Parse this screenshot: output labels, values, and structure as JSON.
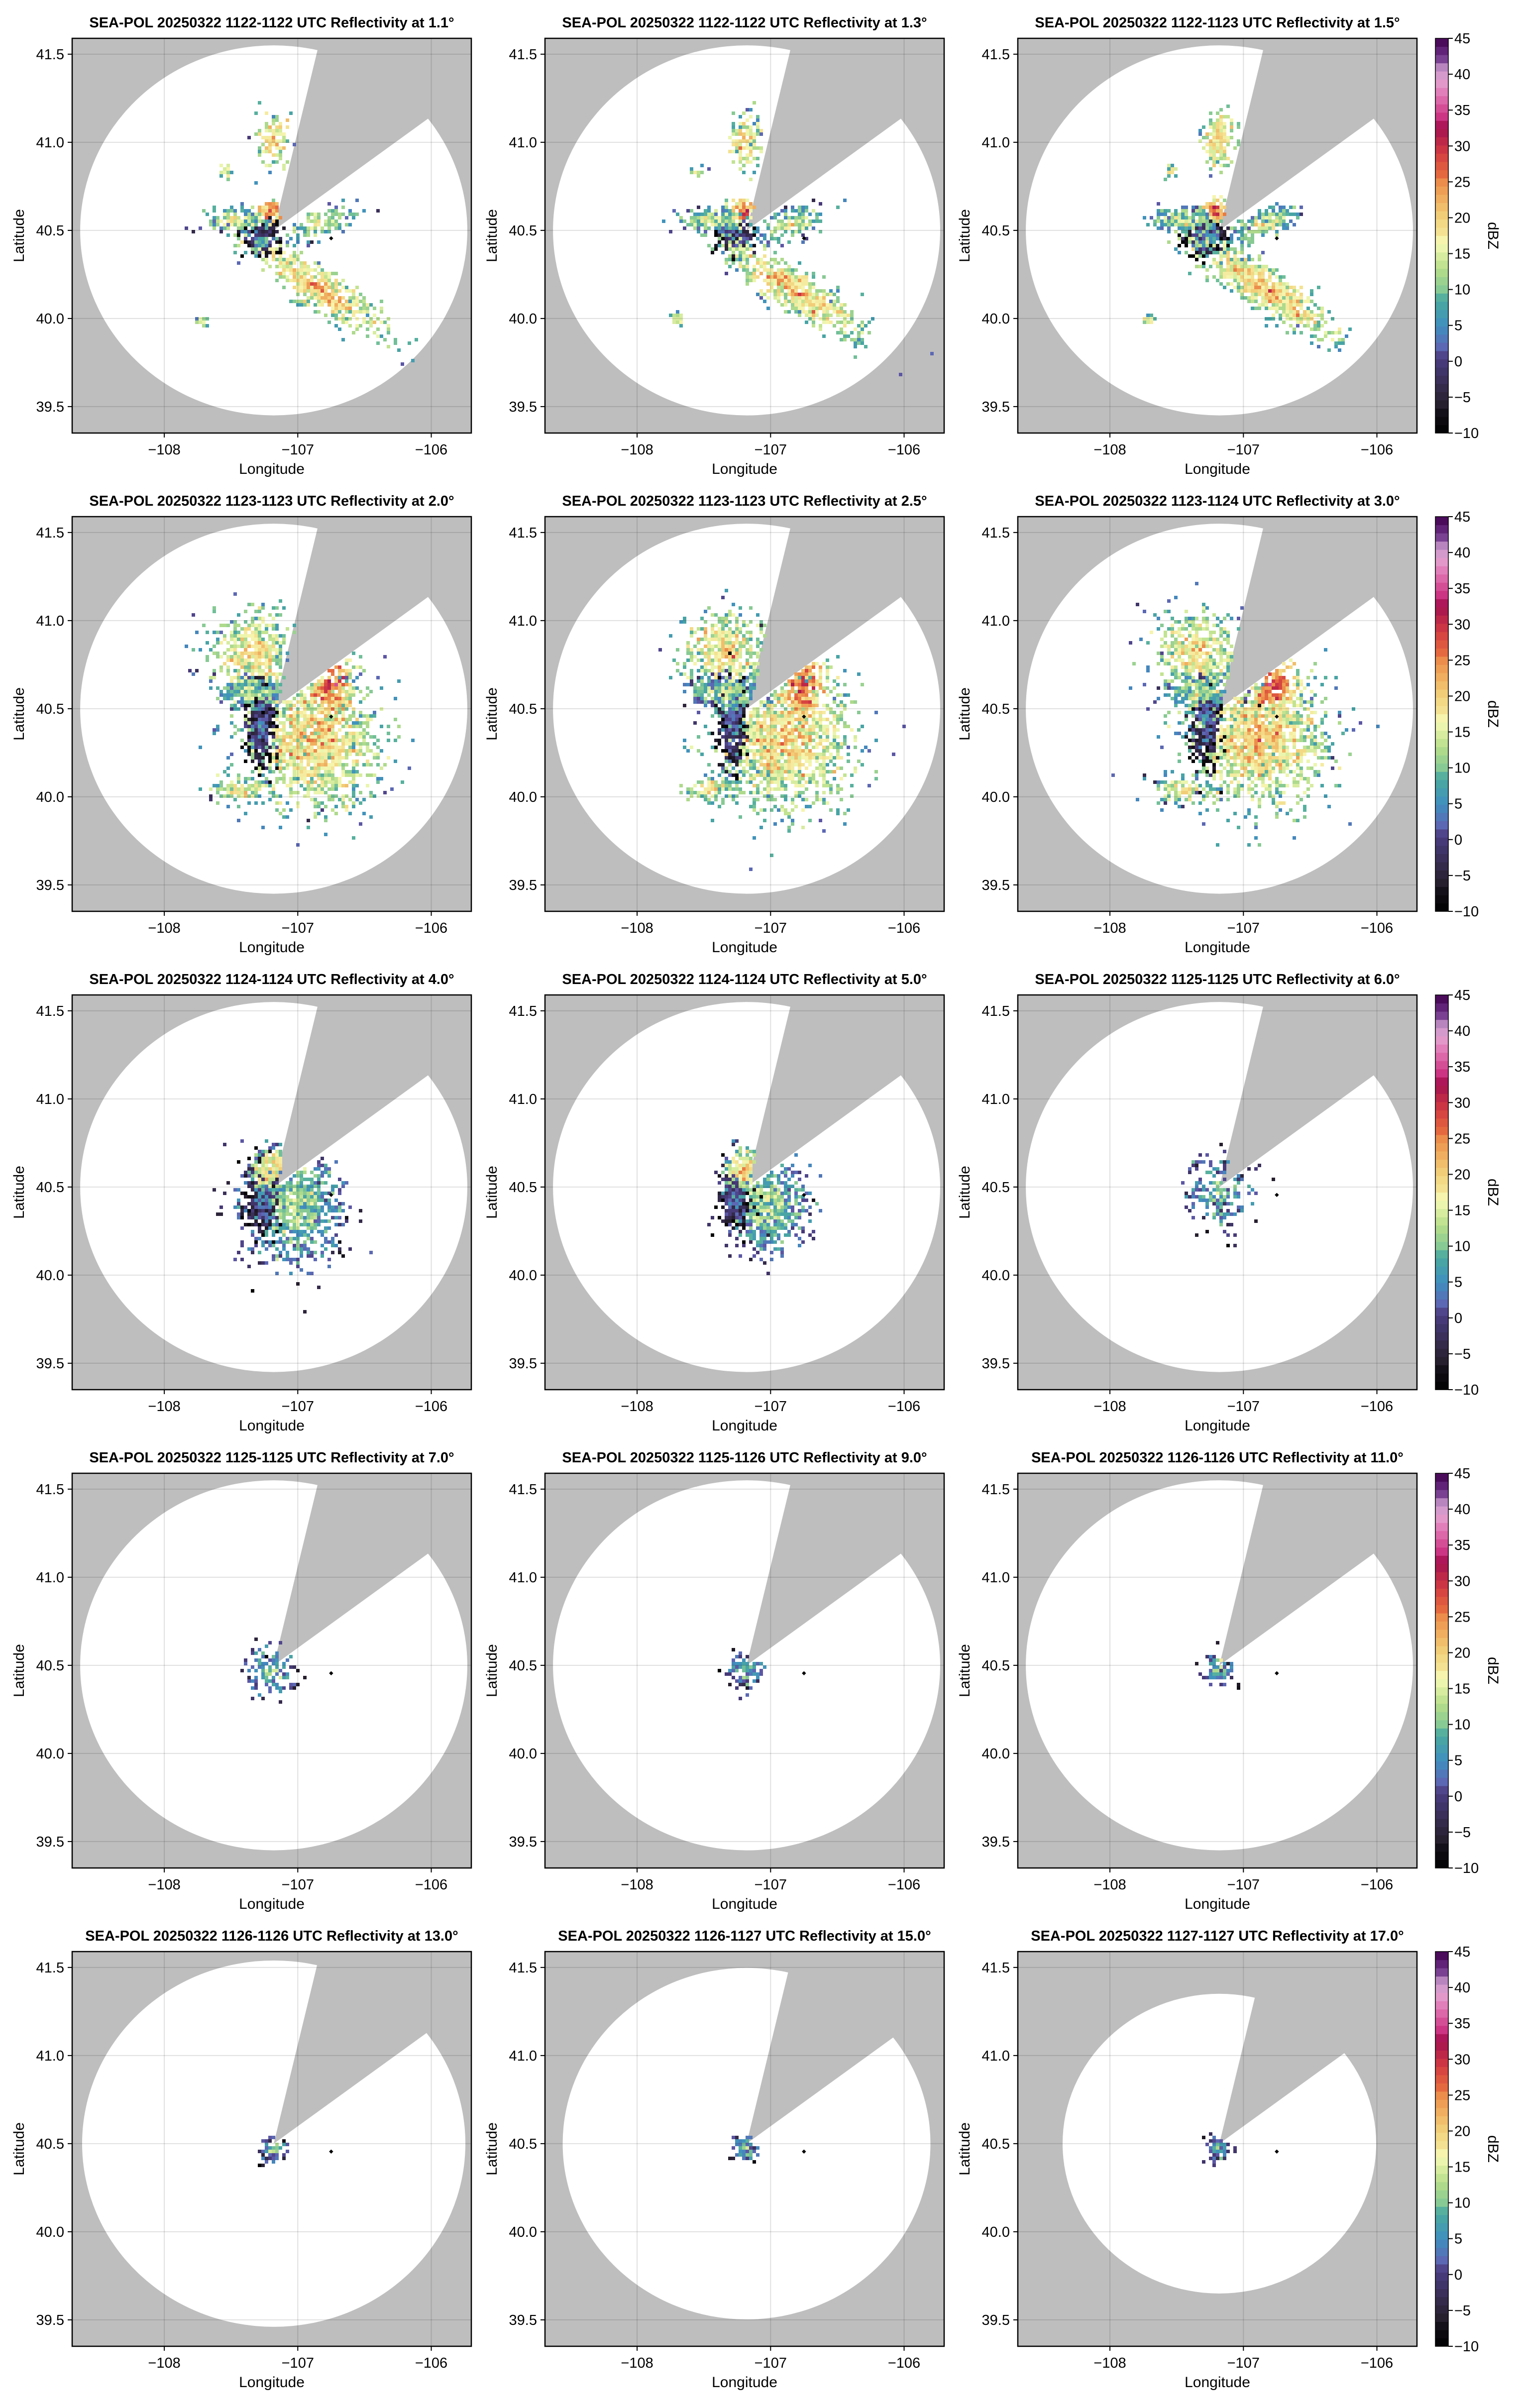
{
  "chart_data": {
    "type": "heatmap",
    "description_type": "radar PPI reflectivity small multiples",
    "xlabel": "Longitude",
    "ylabel": "Latitude",
    "xlim": [
      -108.69,
      -105.7
    ],
    "ylim": [
      39.35,
      41.59
    ],
    "xticks": [
      -108,
      -107,
      -106
    ],
    "xtick_labels": [
      "−108",
      "−107",
      "−106"
    ],
    "yticks": [
      39.5,
      40.0,
      40.5,
      41.0,
      41.5
    ],
    "ytick_labels": [
      "39.5",
      "40.0",
      "40.5",
      "41.0",
      "41.5"
    ],
    "grid": true,
    "radar_location": [
      -107.18,
      40.5
    ],
    "marker_location": [
      -106.75,
      40.455
    ],
    "colorbar": {
      "label": "dBZ",
      "range": [
        -10,
        45
      ],
      "ticks": [
        -10,
        -5,
        0,
        5,
        10,
        15,
        20,
        25,
        30,
        35,
        40,
        45
      ],
      "tick_labels": [
        "−10",
        "−5",
        "0",
        "5",
        "10",
        "15",
        "20",
        "25",
        "30",
        "35",
        "40",
        "45"
      ],
      "stops": [
        [
          -10,
          "#000000"
        ],
        [
          -5,
          "#2a2233"
        ],
        [
          0,
          "#4a3d80"
        ],
        [
          2,
          "#6260b0"
        ],
        [
          5,
          "#3f8fc0"
        ],
        [
          8,
          "#4aa8a0"
        ],
        [
          10,
          "#7ec696"
        ],
        [
          13,
          "#b8de8a"
        ],
        [
          16,
          "#f6f9b4"
        ],
        [
          20,
          "#f2d47e"
        ],
        [
          23,
          "#efa85a"
        ],
        [
          26,
          "#e8723e"
        ],
        [
          29,
          "#d43d42"
        ],
        [
          32,
          "#a5134f"
        ],
        [
          34,
          "#c8287a"
        ],
        [
          37,
          "#e073b2"
        ],
        [
          39,
          "#e4a4d2"
        ],
        [
          41,
          "#a97ab8"
        ],
        [
          43,
          "#6a2e85"
        ],
        [
          45,
          "#40004d"
        ]
      ]
    },
    "colors": {
      "blocked": "#bebebe",
      "coverage": "#ffffff"
    },
    "panels": [
      {
        "title": "SEA-POL 20250322 1122-1122 UTC Reflectivity at 1.1°",
        "elevation": 1.1
      },
      {
        "title": "SEA-POL 20250322 1122-1122 UTC Reflectivity at 1.3°",
        "elevation": 1.3
      },
      {
        "title": "SEA-POL 20250322 1122-1123 UTC Reflectivity at 1.5°",
        "elevation": 1.5
      },
      {
        "title": "SEA-POL 20250322 1123-1123 UTC Reflectivity at 2.0°",
        "elevation": 2.0
      },
      {
        "title": "SEA-POL 20250322 1123-1123 UTC Reflectivity at 2.5°",
        "elevation": 2.5
      },
      {
        "title": "SEA-POL 20250322 1123-1124 UTC Reflectivity at 3.0°",
        "elevation": 3.0
      },
      {
        "title": "SEA-POL 20250322 1124-1124 UTC Reflectivity at 4.0°",
        "elevation": 4.0
      },
      {
        "title": "SEA-POL 20250322 1124-1124 UTC Reflectivity at 5.0°",
        "elevation": 5.0
      },
      {
        "title": "SEA-POL 20250322 1125-1125 UTC Reflectivity at 6.0°",
        "elevation": 6.0
      },
      {
        "title": "SEA-POL 20250322 1125-1125 UTC Reflectivity at 7.0°",
        "elevation": 7.0
      },
      {
        "title": "SEA-POL 20250322 1125-1126 UTC Reflectivity at 9.0°",
        "elevation": 9.0
      },
      {
        "title": "SEA-POL 20250322 1126-1126 UTC Reflectivity at 11.0°",
        "elevation": 11.0
      },
      {
        "title": "SEA-POL 20250322 1126-1126 UTC Reflectivity at 13.0°",
        "elevation": 13.0
      },
      {
        "title": "SEA-POL 20250322 1126-1127 UTC Reflectivity at 15.0°",
        "elevation": 15.0
      },
      {
        "title": "SEA-POL 20250322 1127-1127 UTC Reflectivity at 17.0°",
        "elevation": 17.0
      }
    ]
  }
}
